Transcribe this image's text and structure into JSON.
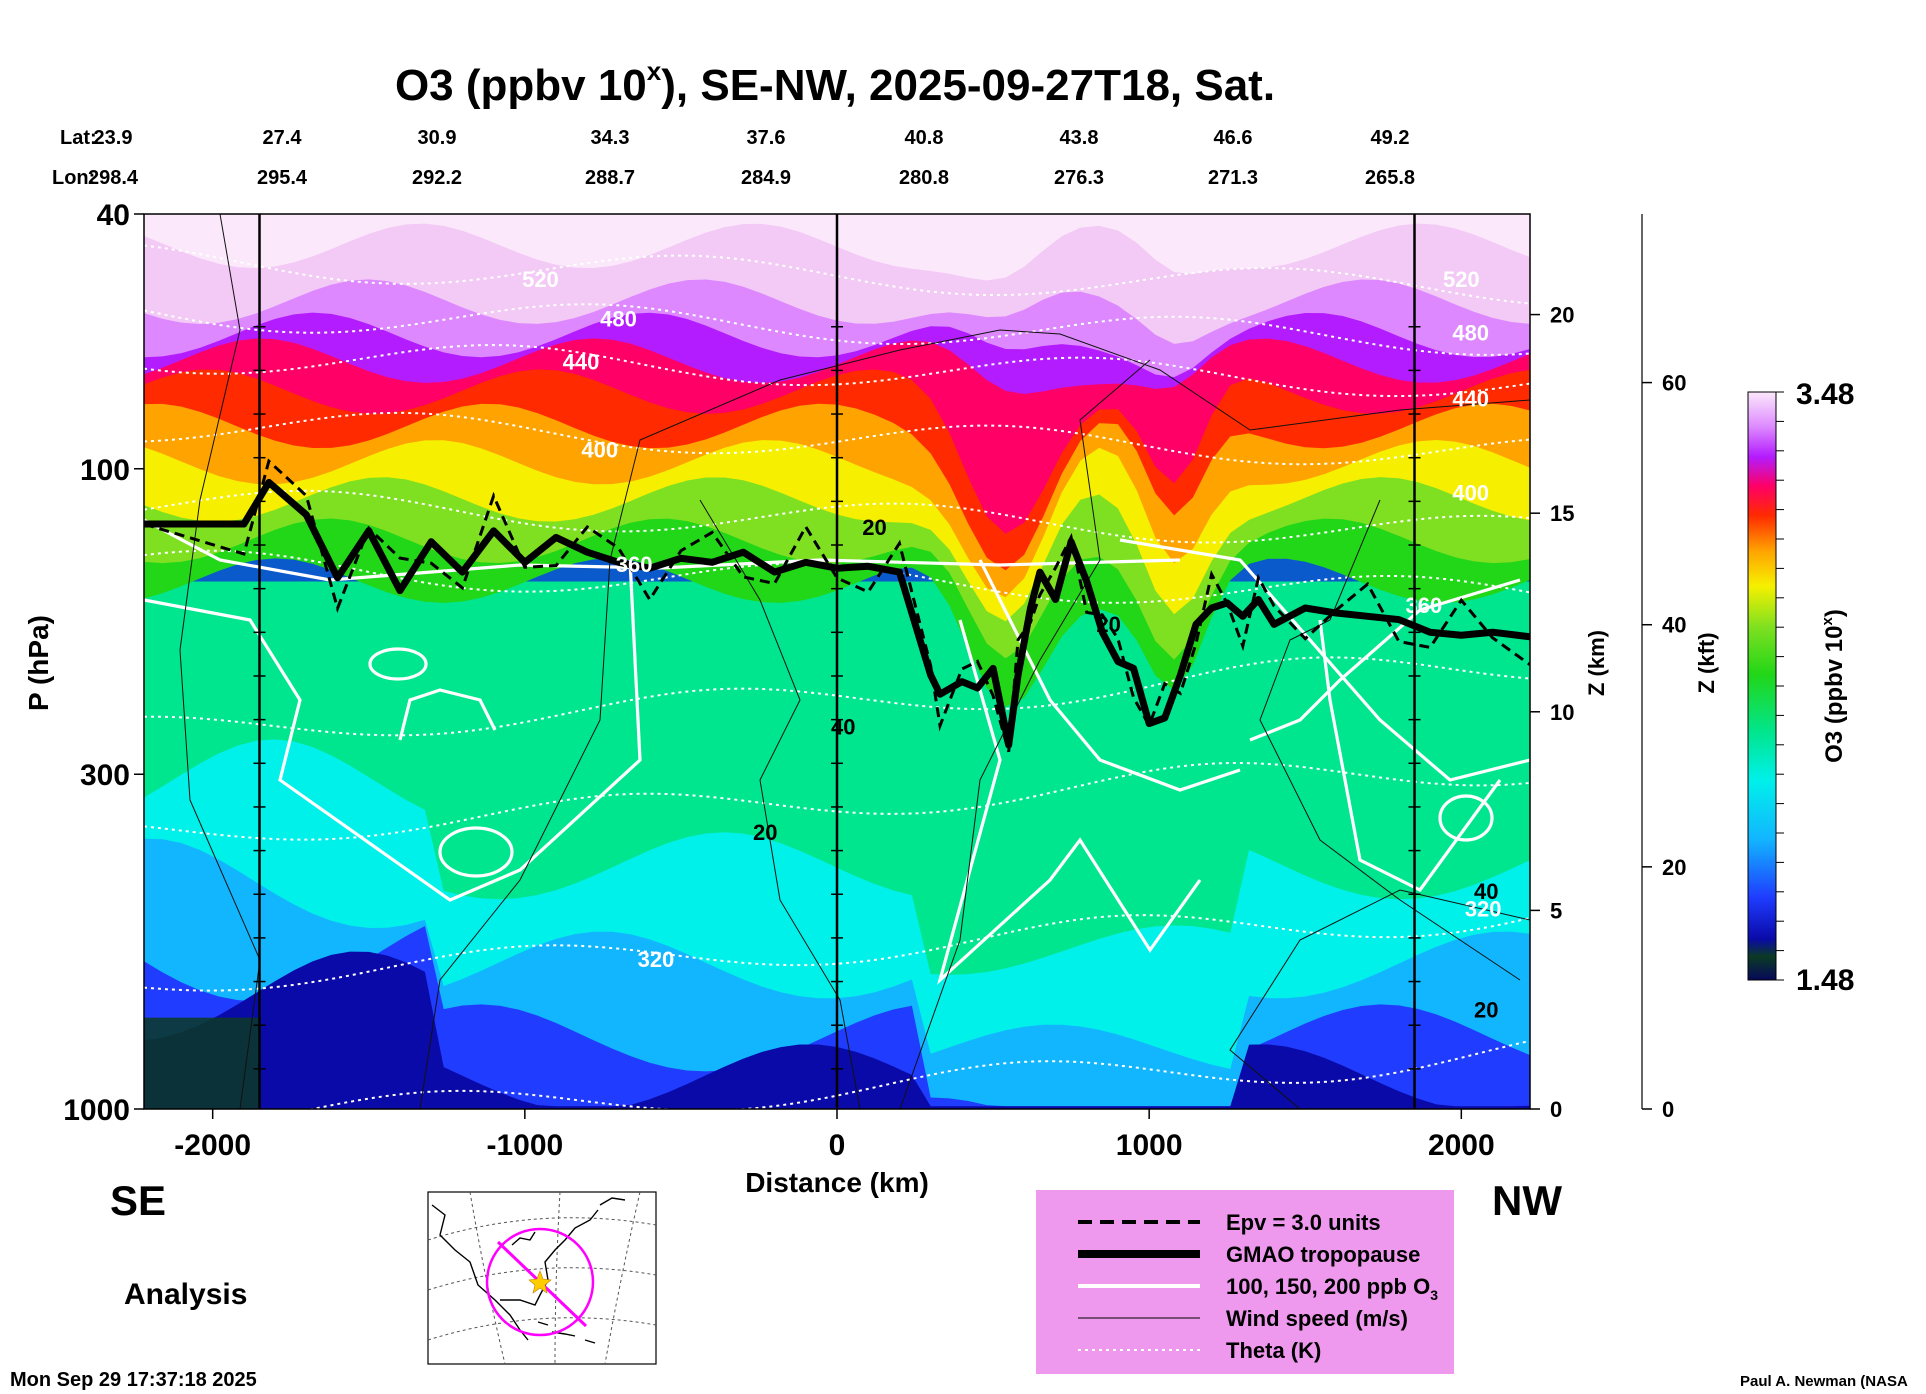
{
  "chart_data": {
    "type": "heatmap",
    "title": "O3 (ppbv 10",
    "title_sup": "x",
    "title_rest": "), SE-NW, 2025-09-27T18, Sat.",
    "lat_label": "Lat:",
    "lon_label": "Lon:",
    "lat": [
      "23.9",
      "27.4",
      "30.9",
      "34.3",
      "37.6",
      "40.8",
      "43.8",
      "46.6",
      "49.2"
    ],
    "lon": [
      "298.4",
      "295.4",
      "292.2",
      "288.7",
      "284.9",
      "280.8",
      "276.3",
      "271.3",
      "265.8"
    ],
    "xlabel": "Distance (km)",
    "ylabel": "P (hPa)",
    "xlim": [
      -2220,
      2220
    ],
    "x_ticks": [
      -2000,
      -1000,
      0,
      1000,
      2000
    ],
    "x_tick_labels": [
      "-2000",
      "-1000",
      "0",
      "1000",
      "2000"
    ],
    "ylim_hpa": [
      1000,
      40
    ],
    "y_ticks": [
      40,
      100,
      300,
      1000
    ],
    "y_tick_labels": [
      "40",
      "100",
      "300",
      "1000"
    ],
    "z_km_label": "Z (km)",
    "z_km_ticks": [
      0,
      5,
      10,
      15,
      20
    ],
    "z_km_tick_labels": [
      "0",
      "5",
      "10",
      "15",
      "20"
    ],
    "z_kft_label": "Z (kft)",
    "z_kft_ticks": [
      0,
      20,
      40,
      60
    ],
    "z_kft_tick_labels": [
      "0",
      "20",
      "40",
      "60"
    ],
    "colorbar": {
      "min": 1.48,
      "max": 3.48,
      "min_label": "1.48",
      "max_label": "3.48",
      "label": "O3 (ppbv 10",
      "label_sup": "x",
      "label_rest": ")"
    },
    "vertical_lines_km": [
      -1850,
      0,
      1850
    ],
    "tropopause_hpa": {
      "x": [
        -2220,
        -1900,
        -1820,
        -1700,
        -1600,
        -1500,
        -1400,
        -1300,
        -1200,
        -1100,
        -1000,
        -900,
        -800,
        -700,
        -600,
        -500,
        -400,
        -300,
        -200,
        -100,
        0,
        100,
        200,
        300,
        330,
        400,
        450,
        500,
        550,
        580,
        620,
        650,
        700,
        750,
        800,
        850,
        900,
        950,
        1000,
        1050,
        1100,
        1150,
        1200,
        1250,
        1300,
        1350,
        1400,
        1500,
        1600,
        1700,
        1800,
        1900,
        2000,
        2100,
        2220
      ],
      "y": [
        122,
        122,
        105,
        118,
        148,
        125,
        155,
        130,
        145,
        125,
        140,
        128,
        135,
        140,
        143,
        138,
        140,
        135,
        145,
        140,
        143,
        142,
        145,
        210,
        225,
        215,
        220,
        205,
        270,
        210,
        165,
        145,
        160,
        130,
        150,
        180,
        200,
        205,
        250,
        245,
        210,
        175,
        165,
        162,
        170,
        160,
        175,
        165,
        168,
        170,
        172,
        180,
        182,
        180,
        183
      ]
    },
    "theta_labels": [
      {
        "text": "520",
        "x": -950,
        "p": 52
      },
      {
        "text": "480",
        "x": -700,
        "p": 60
      },
      {
        "text": "440",
        "x": -820,
        "p": 70
      },
      {
        "text": "400",
        "x": -760,
        "p": 96
      },
      {
        "text": "360",
        "x": -650,
        "p": 145
      },
      {
        "text": "320",
        "x": -580,
        "p": 600
      },
      {
        "text": "520",
        "x": 2000,
        "p": 52
      },
      {
        "text": "480",
        "x": 2030,
        "p": 63
      },
      {
        "text": "440",
        "x": 2030,
        "p": 80
      },
      {
        "text": "400",
        "x": 2030,
        "p": 112
      },
      {
        "text": "360",
        "x": 1880,
        "p": 168
      },
      {
        "text": "320",
        "x": 2070,
        "p": 500
      }
    ],
    "wind_labels": [
      {
        "text": "20",
        "x": 120,
        "p": 127
      },
      {
        "text": "20",
        "x": 870,
        "p": 180
      },
      {
        "text": "40",
        "x": 20,
        "p": 260
      },
      {
        "text": "20",
        "x": -230,
        "p": 380
      },
      {
        "text": "40",
        "x": 2080,
        "p": 470
      },
      {
        "text": "20",
        "x": 2080,
        "p": 720
      }
    ],
    "legend": [
      {
        "style": "dashed",
        "label": "Epv = 3.0 units"
      },
      {
        "style": "thick",
        "label": "GMAO tropopause"
      },
      {
        "style": "white",
        "label": "100, 150, 200 ppb O"
      },
      {
        "style": "thin",
        "label": "Wind speed (m/s)"
      },
      {
        "style": "dotted",
        "label": "Theta (K)"
      }
    ],
    "legend_sub": "3",
    "legend_position": "bottom-right"
  },
  "labels": {
    "se": "SE",
    "nw": "NW",
    "analysis": "Analysis",
    "timestamp": "Mon Sep 29 17:37:18 2025",
    "credit": "Paul A. Newman (NASA"
  },
  "colors": {
    "background": "#ffffff",
    "legend_bg": "#ee99ee",
    "map_path": "#ff00ff",
    "map_star": "#ffcc00"
  }
}
